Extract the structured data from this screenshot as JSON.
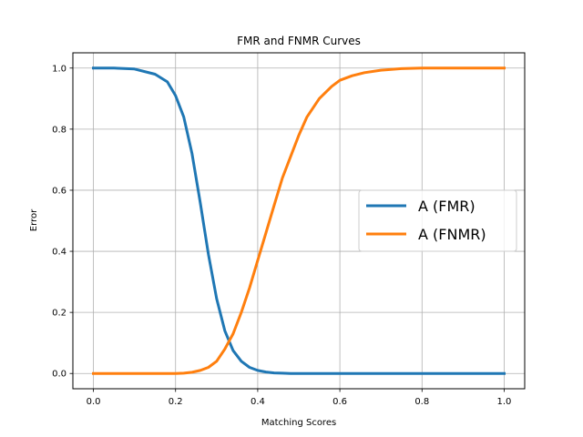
{
  "chart_data": {
    "type": "line",
    "title": "FMR and FNMR Curves",
    "xlabel": "Matching Scores",
    "ylabel": "Error",
    "xlim": [
      -0.05,
      1.05
    ],
    "ylim": [
      -0.05,
      1.05
    ],
    "x_ticks": [
      0.0,
      0.2,
      0.4,
      0.6,
      0.8,
      1.0
    ],
    "x_tick_labels": [
      "0.0",
      "0.2",
      "0.4",
      "0.6",
      "0.8",
      "1.0"
    ],
    "y_ticks": [
      0.0,
      0.2,
      0.4,
      0.6,
      0.8,
      1.0
    ],
    "y_tick_labels": [
      "0.0",
      "0.2",
      "0.4",
      "0.6",
      "0.8",
      "1.0"
    ],
    "grid": true,
    "legend_position": "right",
    "x": [
      0.0,
      0.05,
      0.1,
      0.15,
      0.18,
      0.2,
      0.22,
      0.24,
      0.26,
      0.28,
      0.3,
      0.32,
      0.34,
      0.36,
      0.38,
      0.4,
      0.42,
      0.44,
      0.46,
      0.48,
      0.5,
      0.52,
      0.55,
      0.58,
      0.6,
      0.63,
      0.66,
      0.7,
      0.75,
      0.8,
      0.9,
      1.0
    ],
    "series": [
      {
        "name": "A (FMR)",
        "color": "#1f77b4",
        "values": [
          1.0,
          1.0,
          0.997,
          0.98,
          0.955,
          0.91,
          0.84,
          0.72,
          0.56,
          0.39,
          0.245,
          0.14,
          0.075,
          0.04,
          0.02,
          0.01,
          0.005,
          0.002,
          0.001,
          0.0,
          0.0,
          0.0,
          0.0,
          0.0,
          0.0,
          0.0,
          0.0,
          0.0,
          0.0,
          0.0,
          0.0,
          0.0
        ]
      },
      {
        "name": "A (FNMR)",
        "color": "#ff7f0e",
        "values": [
          0.0,
          0.0,
          0.0,
          0.0,
          0.0,
          0.0,
          0.001,
          0.004,
          0.01,
          0.02,
          0.04,
          0.08,
          0.13,
          0.2,
          0.28,
          0.37,
          0.46,
          0.55,
          0.64,
          0.71,
          0.78,
          0.84,
          0.9,
          0.94,
          0.96,
          0.975,
          0.985,
          0.993,
          0.998,
          1.0,
          1.0,
          1.0
        ]
      }
    ]
  }
}
